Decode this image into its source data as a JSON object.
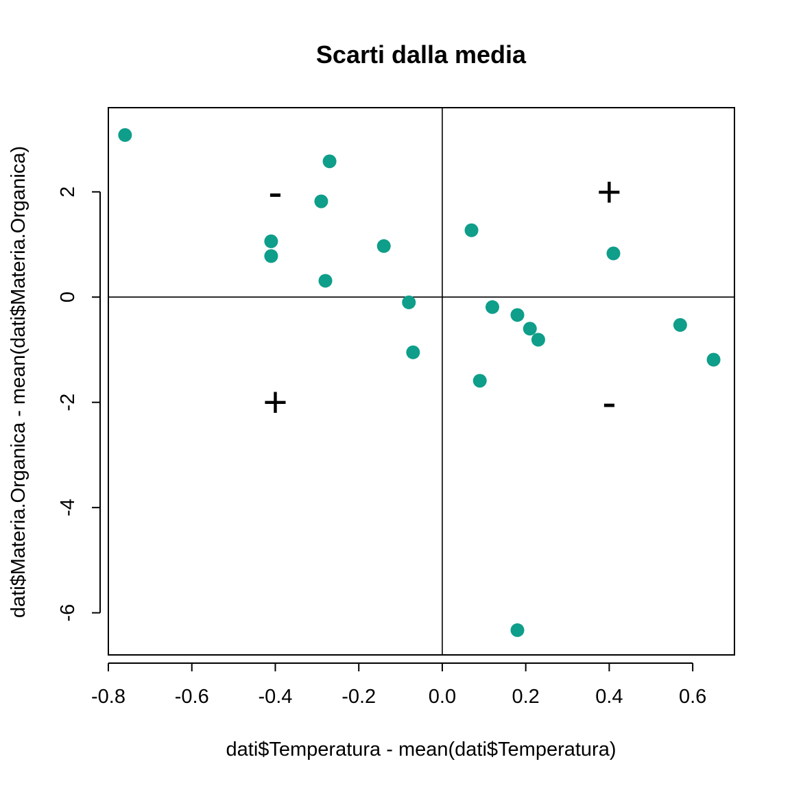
{
  "chart_data": {
    "type": "scatter",
    "title": "Scarti dalla media",
    "xlabel": "dati$Temperatura - mean(dati$Temperatura)",
    "ylabel": "dati$Materia.Organica - mean(dati$Materia.Organica)",
    "xlim": [
      -0.8,
      0.7
    ],
    "ylim": [
      -6.8,
      3.6
    ],
    "x_ticks": [
      -0.8,
      -0.6,
      -0.4,
      -0.2,
      0.0,
      0.2,
      0.4,
      0.6
    ],
    "x_tick_labels": [
      "-0.8",
      "-0.6",
      "-0.4",
      "-0.2",
      "0.0",
      "0.2",
      "0.4",
      "0.6"
    ],
    "y_ticks": [
      -6,
      -4,
      -2,
      0,
      2
    ],
    "y_tick_labels": [
      "-6",
      "-4",
      "-2",
      "0",
      "2"
    ],
    "grid": false,
    "reference_lines": {
      "x": 0,
      "y": 0
    },
    "point_color": "#0E9E8A",
    "points": [
      {
        "x": -0.76,
        "y": 3.08
      },
      {
        "x": -0.27,
        "y": 2.58
      },
      {
        "x": -0.29,
        "y": 1.82
      },
      {
        "x": -0.41,
        "y": 1.06
      },
      {
        "x": -0.41,
        "y": 0.78
      },
      {
        "x": -0.14,
        "y": 0.97
      },
      {
        "x": -0.28,
        "y": 0.31
      },
      {
        "x": -0.08,
        "y": -0.1
      },
      {
        "x": -0.07,
        "y": -1.05
      },
      {
        "x": 0.07,
        "y": 1.27
      },
      {
        "x": 0.41,
        "y": 0.83
      },
      {
        "x": 0.12,
        "y": -0.19
      },
      {
        "x": 0.18,
        "y": -0.34
      },
      {
        "x": 0.21,
        "y": -0.6
      },
      {
        "x": 0.23,
        "y": -0.81
      },
      {
        "x": 0.09,
        "y": -1.59
      },
      {
        "x": 0.57,
        "y": -0.53
      },
      {
        "x": 0.65,
        "y": -1.19
      },
      {
        "x": 0.18,
        "y": -6.33
      }
    ],
    "annotations": [
      {
        "x": -0.4,
        "y": 2,
        "text": "-"
      },
      {
        "x": 0.4,
        "y": 2,
        "text": "+"
      },
      {
        "x": -0.4,
        "y": -2,
        "text": "+"
      },
      {
        "x": 0.4,
        "y": -2,
        "text": "-"
      }
    ]
  }
}
